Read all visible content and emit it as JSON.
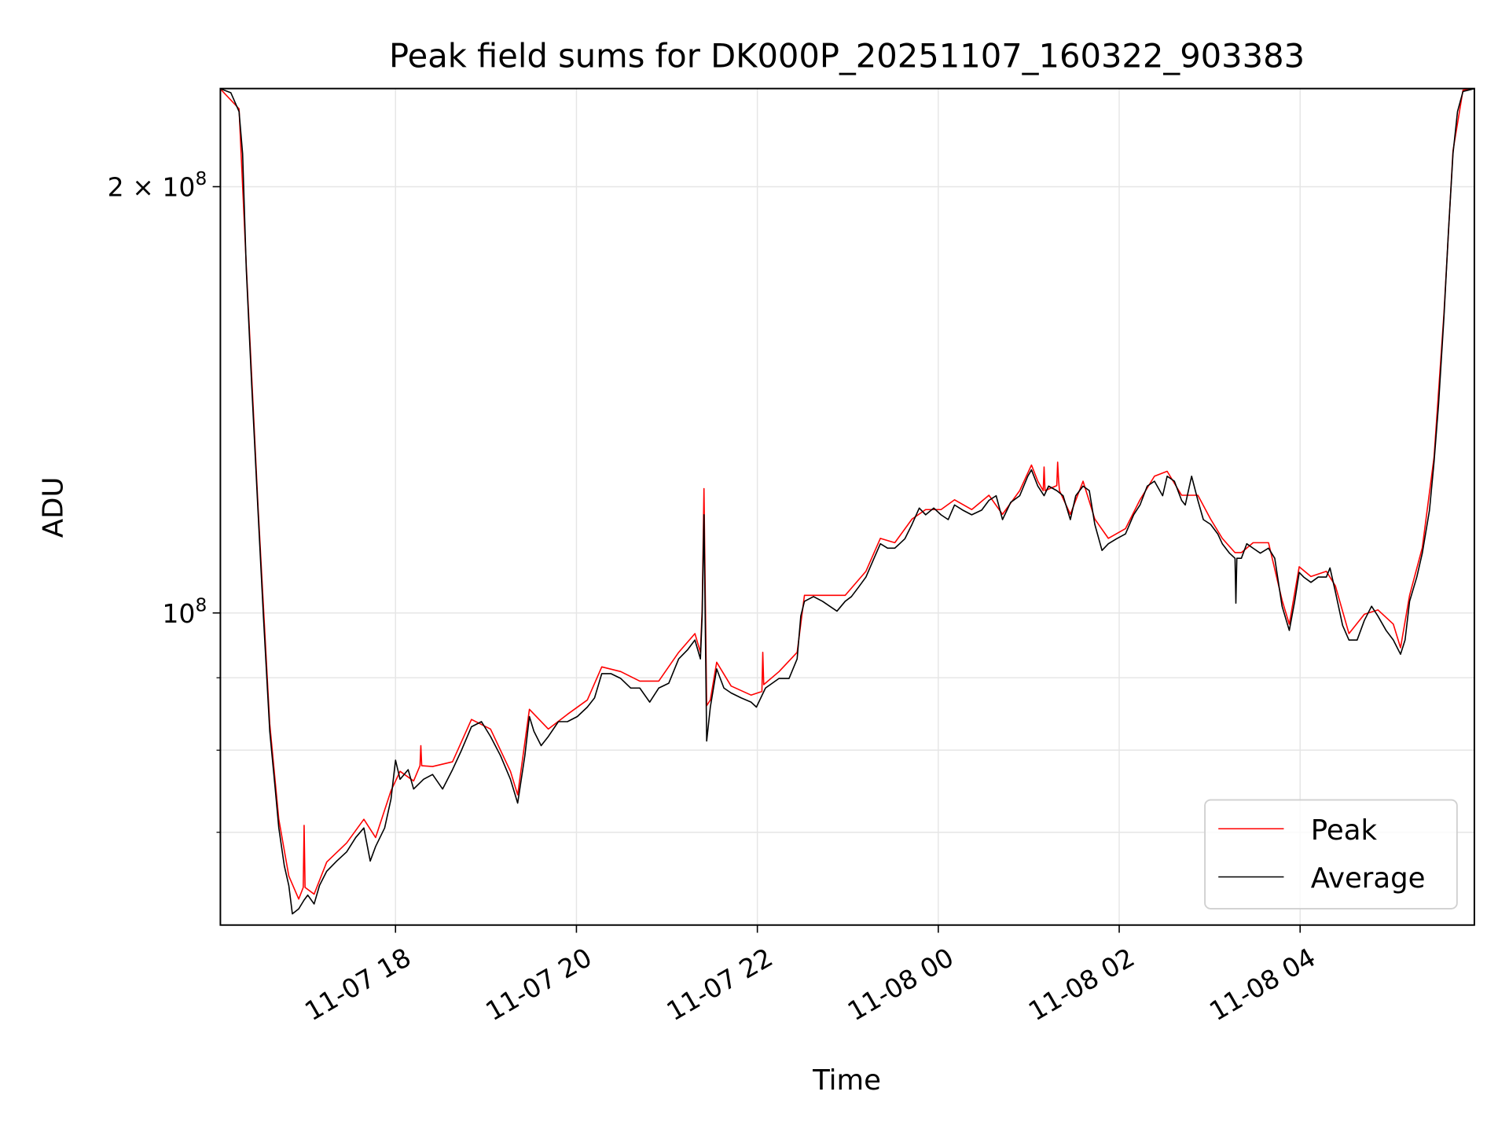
{
  "chart_data": {
    "type": "line",
    "title": "Peak field sums for DK000P_20251107_160322_903383",
    "xlabel": "Time",
    "ylabel": "ADU",
    "x_units": "hours since 11-07 00:00",
    "xlim": [
      16.064,
      29.926
    ],
    "ylim": [
      60200000.0,
      234600000.0
    ],
    "yscale": "log",
    "grid": true,
    "legend_position": "lower-right",
    "x_ticks": [
      {
        "value": 18,
        "label": "11-07 18"
      },
      {
        "value": 20,
        "label": "11-07 20"
      },
      {
        "value": 22,
        "label": "11-07 22"
      },
      {
        "value": 24,
        "label": "11-08 00"
      },
      {
        "value": 26,
        "label": "11-08 02"
      },
      {
        "value": 28,
        "label": "11-08 04"
      }
    ],
    "y_major_ticks": [
      {
        "value": 200000000.0,
        "base": "2 × 10",
        "exp": "8"
      },
      {
        "value": 100000000.0,
        "base": "10",
        "exp": "8"
      }
    ],
    "y_minor_ticks": [
      70000000.0,
      80000000.0,
      90000000.0
    ],
    "series": [
      {
        "name": "Average",
        "color": "#000000",
        "x": [
          16.06,
          16.18,
          16.27,
          16.31,
          16.35,
          16.41,
          16.48,
          16.54,
          16.61,
          16.67,
          16.71,
          16.77,
          16.82,
          16.86,
          16.93,
          16.99,
          17.03,
          17.1,
          17.16,
          17.24,
          17.35,
          17.46,
          17.56,
          17.65,
          17.72,
          17.78,
          17.88,
          17.95,
          18.0,
          18.05,
          18.14,
          18.2,
          18.31,
          18.41,
          18.52,
          18.63,
          18.73,
          18.84,
          18.95,
          19.05,
          19.16,
          19.27,
          19.35,
          19.43,
          19.48,
          19.53,
          19.61,
          19.69,
          19.8,
          19.9,
          20.01,
          20.12,
          20.2,
          20.28,
          20.38,
          20.49,
          20.6,
          20.7,
          20.81,
          20.91,
          21.02,
          21.13,
          21.23,
          21.31,
          21.37,
          21.39,
          21.41,
          21.44,
          21.48,
          21.55,
          21.63,
          21.71,
          21.82,
          21.93,
          21.99,
          22.09,
          22.24,
          22.35,
          22.44,
          22.48,
          22.52,
          22.62,
          22.72,
          22.8,
          22.88,
          22.97,
          23.04,
          23.12,
          23.2,
          23.29,
          23.36,
          23.44,
          23.52,
          23.63,
          23.71,
          23.79,
          23.86,
          23.95,
          24.03,
          24.11,
          24.18,
          24.27,
          24.37,
          24.48,
          24.56,
          24.64,
          24.71,
          24.8,
          24.9,
          24.99,
          25.03,
          25.1,
          25.17,
          25.22,
          25.31,
          25.38,
          25.46,
          25.52,
          25.6,
          25.67,
          25.73,
          25.81,
          25.88,
          25.97,
          26.07,
          26.16,
          26.23,
          26.31,
          26.39,
          26.48,
          26.53,
          26.61,
          26.69,
          26.73,
          26.8,
          26.87,
          26.93,
          27.01,
          27.09,
          27.14,
          27.22,
          27.28,
          27.29,
          27.3,
          27.35,
          27.41,
          27.48,
          27.56,
          27.65,
          27.72,
          27.8,
          27.88,
          27.94,
          27.99,
          28.04,
          28.12,
          28.2,
          28.29,
          28.33,
          28.39,
          28.47,
          28.54,
          28.63,
          28.71,
          28.79,
          28.86,
          28.95,
          29.03,
          29.11,
          29.16,
          29.21,
          29.29,
          29.35,
          29.43,
          29.48,
          29.53,
          29.59,
          29.64,
          29.69,
          29.74,
          29.8,
          29.93
        ],
        "values": [
          234600000.0,
          233000000.0,
          226000000.0,
          211000000.0,
          175000000.0,
          145000000.0,
          118000000.0,
          99500000.0,
          82500000.0,
          75100000.0,
          70500000.0,
          66300000.0,
          64200000.0,
          61300000.0,
          61800000.0,
          62700000.0,
          63200000.0,
          62300000.0,
          64200000.0,
          65700000.0,
          66800000.0,
          67800000.0,
          69400000.0,
          70500000.0,
          66800000.0,
          68400000.0,
          70500000.0,
          73900000.0,
          78700000.0,
          76300000.0,
          77500000.0,
          75100000.0,
          76300000.0,
          76900000.0,
          75100000.0,
          77500000.0,
          80000000.0,
          83100000.0,
          83800000.0,
          81800000.0,
          79300000.0,
          76300000.0,
          73400000.0,
          79300000.0,
          84500000.0,
          82500000.0,
          80600000.0,
          81800000.0,
          83800000.0,
          83800000.0,
          84500000.0,
          85800000.0,
          87100000.0,
          90600000.0,
          90600000.0,
          89900000.0,
          88500000.0,
          88500000.0,
          86500000.0,
          88500000.0,
          89200000.0,
          92800000.0,
          94200000.0,
          95700000.0,
          92800000.0,
          99500000.0,
          117300000.0,
          81200000.0,
          85800000.0,
          91300000.0,
          88500000.0,
          87800000.0,
          87100000.0,
          86500000.0,
          85800000.0,
          88500000.0,
          89900000.0,
          89900000.0,
          92800000.0,
          99500000.0,
          101900000.0,
          102700000.0,
          101900000.0,
          101100000.0,
          100300000.0,
          101900000.0,
          102700000.0,
          104300000.0,
          106000000.0,
          109300000.0,
          111900000.0,
          111100000.0,
          111100000.0,
          112800000.0,
          115500000.0,
          118600000.0,
          117300000.0,
          118600000.0,
          117300000.0,
          116400000.0,
          119200000.0,
          118200000.0,
          117300000.0,
          118200000.0,
          120100000.0,
          121000000.0,
          116400000.0,
          119700000.0,
          121000000.0,
          124900000.0,
          126200000.0,
          122900000.0,
          121000000.0,
          122900000.0,
          122000000.0,
          121000000.0,
          116400000.0,
          121000000.0,
          122900000.0,
          122000000.0,
          115500000.0,
          110700000.0,
          111900000.0,
          112800000.0,
          113700000.0,
          117300000.0,
          119200000.0,
          122900000.0,
          123900000.0,
          121000000.0,
          124900000.0,
          123900000.0,
          120100000.0,
          119200000.0,
          124900000.0,
          120100000.0,
          116400000.0,
          115500000.0,
          113700000.0,
          111900000.0,
          110200000.0,
          109300000.0,
          101600000.0,
          109300000.0,
          109300000.0,
          111900000.0,
          111100000.0,
          110200000.0,
          111100000.0,
          109300000.0,
          101100000.0,
          97200000.0,
          101900000.0,
          106800000.0,
          106000000.0,
          105100000.0,
          106000000.0,
          106000000.0,
          107600000.0,
          103500000.0,
          98000000.0,
          95700000.0,
          95700000.0,
          98800000.0,
          101100000.0,
          99500000.0,
          97200000.0,
          95700000.0,
          93500000.0,
          95700000.0,
          101900000.0,
          106000000.0,
          110200000.0,
          118200000.0,
          127800000.0,
          140400000.0,
          161700000.0,
          186100000.0,
          211000000.0,
          226000000.0,
          233500000.0,
          234600000.0
        ]
      },
      {
        "name": "Peak",
        "color": "#ff0000",
        "x": [
          16.06,
          16.27,
          16.35,
          16.48,
          16.61,
          16.71,
          16.82,
          16.93,
          16.98,
          16.99,
          17.0,
          17.1,
          17.24,
          17.46,
          17.65,
          17.78,
          17.95,
          18.05,
          18.2,
          18.27,
          18.28,
          18.29,
          18.41,
          18.63,
          18.84,
          19.05,
          19.27,
          19.35,
          19.48,
          19.69,
          19.9,
          20.12,
          20.28,
          20.49,
          20.7,
          20.91,
          21.13,
          21.31,
          21.37,
          21.39,
          21.41,
          21.44,
          21.48,
          21.55,
          21.71,
          21.93,
          22.05,
          22.06,
          22.07,
          22.24,
          22.44,
          22.52,
          22.72,
          22.97,
          23.2,
          23.36,
          23.52,
          23.71,
          23.86,
          24.03,
          24.18,
          24.37,
          24.56,
          24.71,
          24.9,
          25.03,
          25.1,
          25.16,
          25.17,
          25.18,
          25.31,
          25.32,
          25.33,
          25.34,
          25.46,
          25.6,
          25.73,
          25.88,
          26.07,
          26.23,
          26.39,
          26.53,
          26.69,
          26.87,
          27.01,
          27.14,
          27.28,
          27.35,
          27.48,
          27.65,
          27.8,
          27.88,
          27.99,
          28.12,
          28.29,
          28.39,
          28.54,
          28.71,
          28.86,
          29.03,
          29.11,
          29.21,
          29.35,
          29.48,
          29.59,
          29.69,
          29.8,
          29.93
        ],
        "values": [
          234600000.0,
          227000000.0,
          176000000.0,
          119000000.0,
          83500000.0,
          71500000.0,
          65200000.0,
          62800000.0,
          64000000.0,
          70800000.0,
          64000000.0,
          63300000.0,
          66700000.0,
          68800000.0,
          71500000.0,
          69400000.0,
          74900000.0,
          77300000.0,
          76100000.0,
          78000000.0,
          80600000.0,
          78000000.0,
          77900000.0,
          78500000.0,
          84100000.0,
          82800000.0,
          77300000.0,
          74400000.0,
          85500000.0,
          82800000.0,
          84800000.0,
          86800000.0,
          91600000.0,
          90900000.0,
          89500000.0,
          89500000.0,
          93800000.0,
          96700000.0,
          93800000.0,
          100500000.0,
          122400000.0,
          86000000.0,
          86800000.0,
          92300000.0,
          88800000.0,
          87500000.0,
          88000000.0,
          93800000.0,
          89000000.0,
          90900000.0,
          93800000.0,
          102900000.0,
          102900000.0,
          102900000.0,
          107000000.0,
          112900000.0,
          112100000.0,
          116500000.0,
          118300000.0,
          118300000.0,
          120200000.0,
          118300000.0,
          121100000.0,
          117400000.0,
          122000000.0,
          127200000.0,
          123900000.0,
          122000000.0,
          126800000.0,
          122000000.0,
          123000000.0,
          127800000.0,
          124000000.0,
          122000000.0,
          117400000.0,
          123900000.0,
          116500000.0,
          112900000.0,
          114700000.0,
          120200000.0,
          124900000.0,
          125900000.0,
          121100000.0,
          121100000.0,
          116500000.0,
          112900000.0,
          110300000.0,
          110300000.0,
          112100000.0,
          112100000.0,
          102100000.0,
          98200000.0,
          107800000.0,
          106100000.0,
          107000000.0,
          104500000.0,
          96700000.0,
          99800000.0,
          100500000.0,
          98200000.0,
          94500000.0,
          102900000.0,
          111200000.0,
          128800000.0,
          162700000.0,
          212000000.0,
          234000000.0,
          234600000.0
        ]
      }
    ]
  }
}
